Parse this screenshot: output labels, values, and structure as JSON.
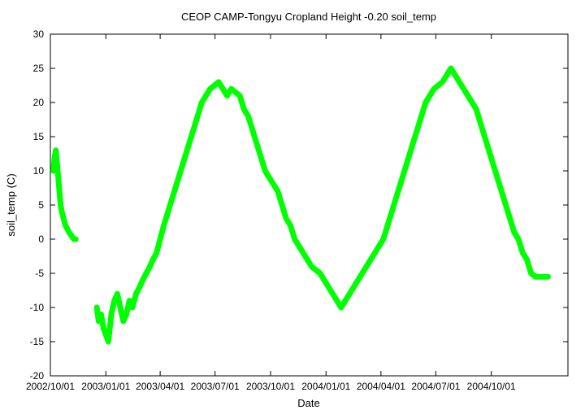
{
  "chart_data": {
    "type": "line",
    "title": "CEOP CAMP-Tongyu Cropland Height -0.20 soil_temp",
    "xlabel": "Date",
    "ylabel": "soil_temp (C)",
    "ylim": [
      -20,
      30
    ],
    "xlim": [
      "2002-10-01",
      "2005-02-05"
    ],
    "x_ticks": [
      "2002-10-01",
      "2003-01-01",
      "2003-04-01",
      "2003-07-01",
      "2003-10-01",
      "2004-01-01",
      "2004-04-01",
      "2004-07-01",
      "2004-10-01"
    ],
    "x_tick_labels": [
      "2002/10/01",
      "2003/01/01",
      "2003/04/01",
      "2003/07/01",
      "2003/10/01",
      "2004/01/01",
      "2004/04/01",
      "2004/07/01",
      "2004/10/01"
    ],
    "y_ticks": [
      -20,
      -15,
      -10,
      -5,
      0,
      5,
      10,
      15,
      20,
      25,
      30
    ],
    "grid": false,
    "legend": "none",
    "series_color": "#00ff00",
    "series": [
      {
        "x": [
          "2002-10-06",
          "2002-10-08",
          "2002-10-10",
          "2002-10-12",
          "2002-10-14",
          "2002-10-16",
          "2002-10-18",
          "2002-10-20",
          "2002-10-23",
          "2002-10-26",
          "2002-10-29",
          "2002-11-01",
          "2002-11-05",
          "2002-11-09",
          "2002-11-12"
        ],
        "y": [
          10,
          12,
          13,
          11,
          9,
          7,
          5,
          4,
          3,
          2,
          1.5,
          1,
          0.5,
          0,
          0
        ]
      },
      {
        "x": [
          "2002-12-17",
          "2002-12-20",
          "2002-12-24",
          "2002-12-28",
          "2003-01-01",
          "2003-01-05",
          "2003-01-10",
          "2003-01-15",
          "2003-01-20",
          "2003-01-25",
          "2003-01-30",
          "2003-02-04",
          "2003-02-09",
          "2003-02-14",
          "2003-02-20",
          "2003-02-26",
          "2003-03-03",
          "2003-03-09",
          "2003-03-15",
          "2003-03-20",
          "2003-03-26",
          "2003-04-01",
          "2003-04-07",
          "2003-04-14",
          "2003-04-21",
          "2003-04-28",
          "2003-05-05",
          "2003-05-12",
          "2003-05-19",
          "2003-05-26",
          "2003-06-02",
          "2003-06-09",
          "2003-06-16",
          "2003-06-23",
          "2003-06-30",
          "2003-07-07",
          "2003-07-14",
          "2003-07-21",
          "2003-07-28",
          "2003-08-04",
          "2003-08-11",
          "2003-08-18",
          "2003-08-25",
          "2003-09-01",
          "2003-09-08",
          "2003-09-15",
          "2003-09-22",
          "2003-09-29",
          "2003-10-06",
          "2003-10-13",
          "2003-10-20",
          "2003-10-27",
          "2003-11-03",
          "2003-11-10",
          "2003-11-17",
          "2003-11-24",
          "2003-12-01",
          "2003-12-08",
          "2003-12-15",
          "2003-12-22",
          "2003-12-29",
          "2004-01-05",
          "2004-01-12",
          "2004-01-19",
          "2004-01-26",
          "2004-02-02",
          "2004-02-09",
          "2004-02-16",
          "2004-02-23",
          "2004-03-01",
          "2004-03-08",
          "2004-03-15",
          "2004-03-22",
          "2004-03-29",
          "2004-04-05",
          "2004-04-12",
          "2004-04-19",
          "2004-04-26",
          "2004-05-03",
          "2004-05-10",
          "2004-05-17",
          "2004-05-24",
          "2004-05-31",
          "2004-06-07",
          "2004-06-14",
          "2004-06-21",
          "2004-06-28",
          "2004-07-05",
          "2004-07-12",
          "2004-07-19",
          "2004-07-26",
          "2004-08-02",
          "2004-08-09",
          "2004-08-16",
          "2004-08-23",
          "2004-08-30",
          "2004-09-06",
          "2004-09-13",
          "2004-09-20",
          "2004-09-27",
          "2004-10-04",
          "2004-10-11",
          "2004-10-18",
          "2004-10-25",
          "2004-11-01",
          "2004-11-08",
          "2004-11-15",
          "2004-11-22",
          "2004-11-29",
          "2004-12-06",
          "2004-12-13",
          "2004-12-20",
          "2004-12-27",
          "2005-01-03"
        ],
        "y": [
          -10,
          -12,
          -11,
          -13,
          -14,
          -15,
          -11,
          -9,
          -8,
          -10,
          -12,
          -11,
          -9,
          -10,
          -8,
          -7,
          -6,
          -5,
          -4,
          -3,
          -2,
          0,
          2,
          4,
          6,
          8,
          10,
          12,
          14,
          16,
          18,
          20,
          21,
          22,
          22.5,
          23,
          22,
          21,
          22,
          21.5,
          21,
          19,
          18,
          16,
          14,
          12,
          10,
          9,
          8,
          7,
          5,
          3,
          2,
          0,
          -1,
          -2,
          -3,
          -4,
          -4.5,
          -5,
          -6,
          -7,
          -8,
          -9,
          -10,
          -9,
          -8,
          -7,
          -6,
          -5,
          -4,
          -3,
          -2,
          -1,
          0,
          2,
          4,
          6,
          8,
          10,
          12,
          14,
          16,
          18,
          20,
          21,
          22,
          22.5,
          23,
          24,
          25,
          24,
          23,
          22,
          21,
          20,
          19,
          17,
          15,
          13,
          11,
          9,
          7,
          5,
          3,
          1,
          0,
          -2,
          -3,
          -5,
          -5.5,
          -5.5,
          -5.5,
          -5.5
        ]
      }
    ]
  }
}
